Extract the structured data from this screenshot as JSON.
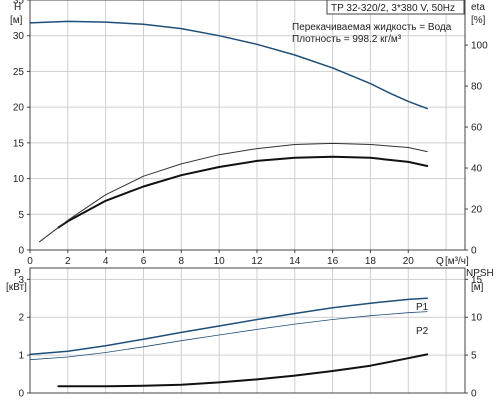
{
  "chart_data": [
    {
      "type": "line",
      "panel": "top",
      "title_box": "TP 32-320/2, 3*380 V, 50Hz",
      "annotations": [
        "Перекачиваемая жидкость = Вода",
        "Плотность = 998.2 кг/м³"
      ],
      "x_label": "Q",
      "x_unit": "[м³/ч]",
      "x_ticks": [
        "0",
        "2",
        "4",
        "6",
        "8",
        "10",
        "12",
        "14",
        "16",
        "18",
        "20"
      ],
      "xlim": [
        0,
        23
      ],
      "left_axis": {
        "label": "H",
        "unit": "[м]",
        "ticks": [
          "0",
          "5",
          "10",
          "15",
          "20",
          "25",
          "30",
          "35"
        ],
        "ylim": [
          0,
          35
        ]
      },
      "right_axis": {
        "label": "eta",
        "unit": "[%]",
        "ticks": [
          "0",
          "20",
          "40",
          "60",
          "80",
          "100"
        ],
        "ylim": [
          0,
          122
        ]
      },
      "grid": true,
      "series": [
        {
          "axis": "left",
          "color": "#1f4e79",
          "points": [
            [
              0,
              31.8
            ],
            [
              2,
              32.0
            ],
            [
              4,
              31.9
            ],
            [
              6,
              31.6
            ],
            [
              8,
              31.0
            ],
            [
              10,
              30.0
            ],
            [
              12,
              28.8
            ],
            [
              14,
              27.3
            ],
            [
              16,
              25.5
            ],
            [
              18,
              23.3
            ],
            [
              19,
              22.0
            ],
            [
              20,
              20.8
            ],
            [
              21,
              19.8
            ]
          ]
        },
        {
          "axis": "right",
          "color": "#111111",
          "width": 2,
          "points": [
            [
              1.5,
              11
            ],
            [
              2,
              14
            ],
            [
              4,
              24
            ],
            [
              6,
              31
            ],
            [
              8,
              36.5
            ],
            [
              10,
              40.5
            ],
            [
              12,
              43.5
            ],
            [
              14,
              45
            ],
            [
              16,
              45.5
            ],
            [
              18,
              45
            ],
            [
              20,
              43
            ],
            [
              21,
              41
            ]
          ]
        },
        {
          "axis": "right",
          "color": "#333333",
          "width": 1,
          "points": [
            [
              0.5,
              4
            ],
            [
              2,
              14.5
            ],
            [
              4,
              27
            ],
            [
              6,
              36
            ],
            [
              8,
              42
            ],
            [
              10,
              46.5
            ],
            [
              12,
              49.5
            ],
            [
              14,
              51.5
            ],
            [
              16,
              52
            ],
            [
              18,
              51.5
            ],
            [
              20,
              50
            ],
            [
              21,
              48
            ]
          ]
        }
      ]
    },
    {
      "type": "line",
      "panel": "bottom",
      "x_ticks": [],
      "xlim": [
        0,
        23
      ],
      "left_axis": {
        "label": "P",
        "unit": "[кВт]",
        "ticks": [
          "0",
          "1",
          "2",
          "3"
        ],
        "ylim": [
          0,
          3.3
        ]
      },
      "right_axis": {
        "label": "NPSH",
        "unit": "[м]",
        "ticks": [
          "0",
          "5",
          "10",
          "15"
        ],
        "ylim": [
          0,
          16.5
        ]
      },
      "grid": true,
      "series": [
        {
          "name": "P1",
          "axis": "left",
          "color": "#1f4e79",
          "width": 1.5,
          "points": [
            [
              0,
              1.02
            ],
            [
              2,
              1.1
            ],
            [
              4,
              1.25
            ],
            [
              6,
              1.42
            ],
            [
              8,
              1.6
            ],
            [
              10,
              1.77
            ],
            [
              12,
              1.94
            ],
            [
              14,
              2.1
            ],
            [
              16,
              2.25
            ],
            [
              18,
              2.37
            ],
            [
              20,
              2.47
            ],
            [
              21,
              2.5
            ]
          ]
        },
        {
          "name": "P2",
          "axis": "left",
          "color": "#1f4e79",
          "width": 0.8,
          "points": [
            [
              0,
              0.88
            ],
            [
              2,
              0.95
            ],
            [
              4,
              1.07
            ],
            [
              6,
              1.22
            ],
            [
              8,
              1.38
            ],
            [
              10,
              1.53
            ],
            [
              12,
              1.68
            ],
            [
              14,
              1.82
            ],
            [
              16,
              1.94
            ],
            [
              18,
              2.04
            ],
            [
              20,
              2.12
            ],
            [
              21,
              2.15
            ]
          ]
        },
        {
          "axis": "right",
          "color": "#111111",
          "width": 2,
          "points": [
            [
              1.5,
              0.9
            ],
            [
              4,
              0.9
            ],
            [
              6,
              0.95
            ],
            [
              8,
              1.1
            ],
            [
              10,
              1.4
            ],
            [
              12,
              1.8
            ],
            [
              14,
              2.3
            ],
            [
              16,
              2.9
            ],
            [
              18,
              3.6
            ],
            [
              20,
              4.6
            ],
            [
              21,
              5.1
            ]
          ]
        }
      ]
    }
  ]
}
